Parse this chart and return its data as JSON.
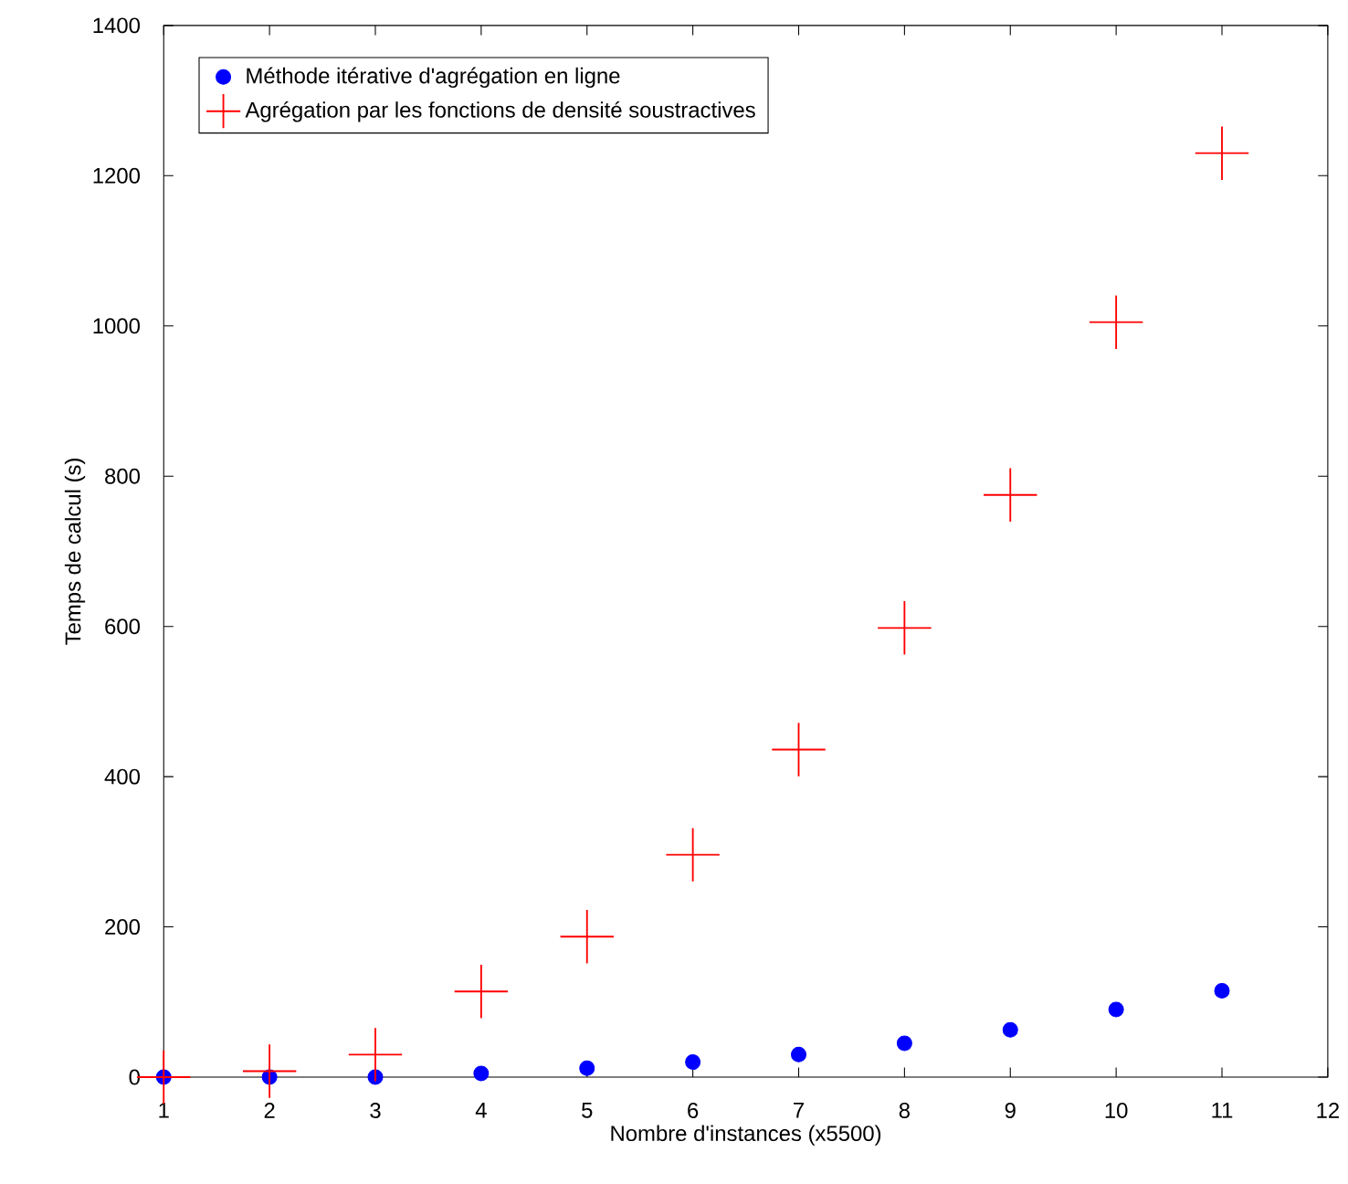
{
  "chart_data": {
    "type": "scatter",
    "xlabel": "Nombre d'instances (x5500)",
    "ylabel": "Temps de calcul (s)",
    "x": [
      1,
      2,
      3,
      4,
      5,
      6,
      7,
      8,
      9,
      10,
      11
    ],
    "series": [
      {
        "name": "Méthode itérative d'agrégation en ligne",
        "color": "#0000ff",
        "marker": "circle",
        "values": [
          0,
          0,
          0,
          5,
          12,
          20,
          30,
          45,
          63,
          90,
          115
        ]
      },
      {
        "name": "Agrégation par les fonctions de densité soustractives",
        "color": "#ff0000",
        "marker": "cross",
        "values": [
          0,
          8,
          30,
          114,
          187,
          296,
          436,
          598,
          775,
          1005,
          1230
        ]
      }
    ],
    "xlim": [
      1,
      12
    ],
    "xticks": [
      1,
      2,
      3,
      4,
      5,
      6,
      7,
      8,
      9,
      10,
      11,
      12
    ],
    "ylim": [
      0,
      1400
    ],
    "yticks": [
      0,
      200,
      400,
      600,
      800,
      1000,
      1200,
      1400
    ],
    "grid": false,
    "legend": "top left"
  }
}
